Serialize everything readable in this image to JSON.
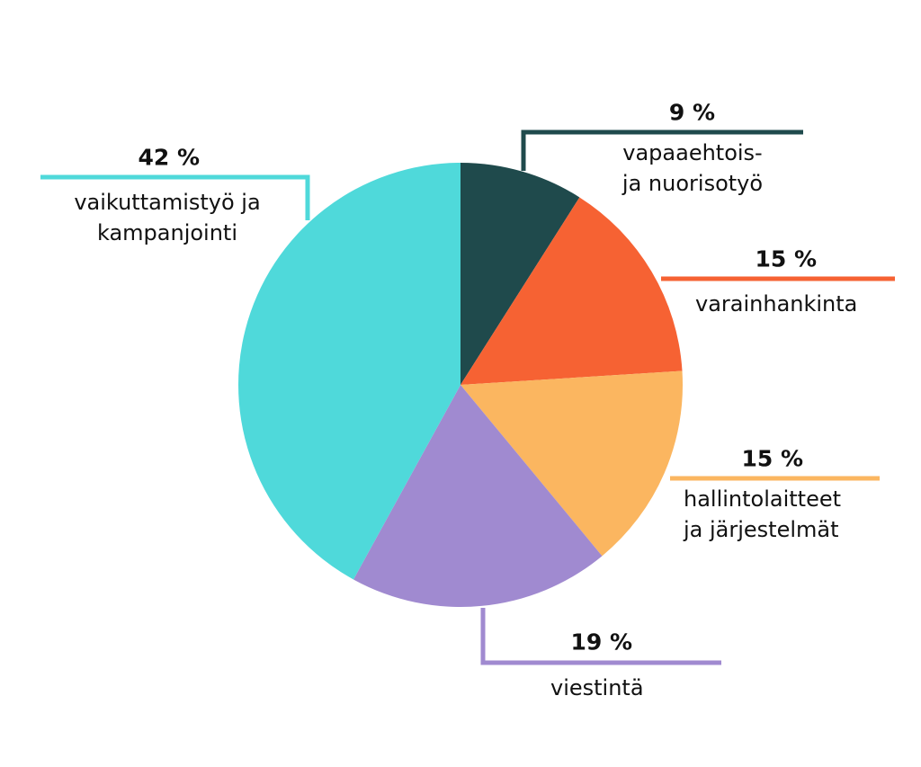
{
  "chart_data": {
    "type": "pie",
    "categories": [
      "vapaaehtois-\nja nuorisotyö",
      "varainhankinta",
      "hallintolaitteet\nja järjestelmät",
      "viestintä",
      "vaikuttamistyö ja\nkampanjointi"
    ],
    "values": [
      9,
      15,
      15,
      19,
      42
    ],
    "value_labels": [
      "9 %",
      "15 %",
      "15 %",
      "19 %",
      "42 %"
    ],
    "colors": [
      "#1f4a4c",
      "#f66233",
      "#fbb660",
      "#a08ad0",
      "#4fd9da"
    ]
  }
}
